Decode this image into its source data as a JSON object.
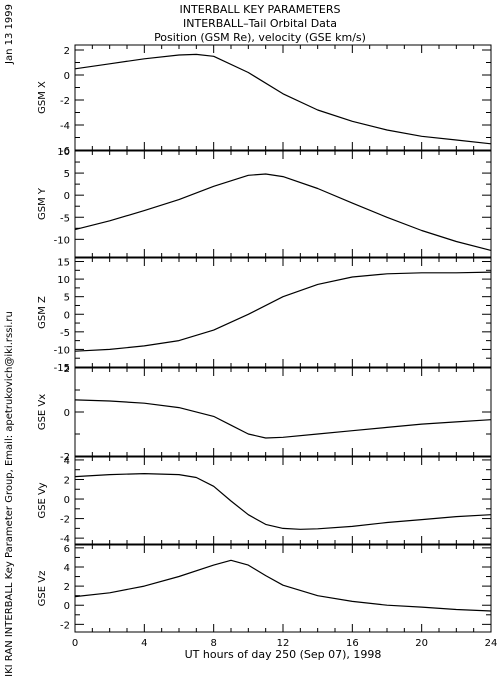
{
  "header": {
    "lines": [
      "INTERBALL KEY PARAMETERS",
      "INTERBALL–Tail Orbital Data",
      "Position (GSM Re), velocity (GSE km/s)"
    ]
  },
  "date_stamp": "Jan 13 1999",
  "credit": "IKI RAN INTERBALL Key Parameter Group, Email: apetrukovich@iki.rssi.ru",
  "chart_data": [
    {
      "type": "line",
      "ylabel": "GSM X",
      "ylim": [
        -6,
        2.4
      ],
      "yticks": [
        -6,
        -4,
        -2,
        0,
        2
      ],
      "x": [
        0,
        2,
        4,
        6,
        7,
        8,
        10,
        12,
        14,
        16,
        18,
        20,
        22,
        24
      ],
      "y": [
        0.5,
        0.9,
        1.3,
        1.6,
        1.65,
        1.5,
        0.2,
        -1.5,
        -2.8,
        -3.7,
        -4.4,
        -4.9,
        -5.2,
        -5.5
      ]
    },
    {
      "type": "line",
      "ylabel": "GSM Y",
      "ylim": [
        -14,
        10
      ],
      "yticks": [
        -10,
        -5,
        0,
        5,
        10
      ],
      "x": [
        0,
        2,
        4,
        6,
        8,
        10,
        11,
        12,
        14,
        16,
        18,
        20,
        22,
        24
      ],
      "y": [
        -7.8,
        -5.8,
        -3.5,
        -1,
        2,
        4.5,
        4.8,
        4.2,
        1.5,
        -1.8,
        -5,
        -8,
        -10.5,
        -12.5
      ]
    },
    {
      "type": "line",
      "ylabel": "GSM Z",
      "ylim": [
        -15,
        16
      ],
      "yticks": [
        -15,
        -10,
        -5,
        0,
        5,
        10,
        15
      ],
      "x": [
        0,
        2,
        4,
        6,
        8,
        10,
        12,
        14,
        16,
        18,
        20,
        22,
        24
      ],
      "y": [
        -10.5,
        -10,
        -9,
        -7.5,
        -4.5,
        0,
        5,
        8.5,
        10.6,
        11.5,
        11.8,
        11.8,
        12
      ]
    },
    {
      "type": "line",
      "ylabel": "GSE Vx",
      "ylim": [
        -2,
        2
      ],
      "yticks": [
        -2,
        0,
        2
      ],
      "x": [
        0,
        2,
        4,
        6,
        8,
        9,
        10,
        11,
        12,
        14,
        16,
        18,
        20,
        22,
        24
      ],
      "y": [
        0.55,
        0.5,
        0.4,
        0.2,
        -0.2,
        -0.6,
        -1,
        -1.18,
        -1.15,
        -1,
        -0.85,
        -0.7,
        -0.55,
        -0.45,
        -0.35
      ]
    },
    {
      "type": "line",
      "ylabel": "GSE Vy",
      "ylim": [
        -4.6,
        4.3
      ],
      "yticks": [
        -4,
        -2,
        0,
        2,
        4
      ],
      "x": [
        0,
        2,
        4,
        6,
        7,
        8,
        9,
        10,
        11,
        12,
        13,
        14,
        16,
        18,
        20,
        22,
        24
      ],
      "y": [
        2.3,
        2.5,
        2.6,
        2.5,
        2.2,
        1.3,
        -0.2,
        -1.6,
        -2.6,
        -3,
        -3.1,
        -3.05,
        -2.8,
        -2.4,
        -2.1,
        -1.8,
        -1.6
      ]
    },
    {
      "type": "line",
      "ylabel": "GSE Vz",
      "ylim": [
        -2.8,
        6.3
      ],
      "yticks": [
        -2,
        0,
        2,
        4,
        6
      ],
      "x": [
        0,
        2,
        4,
        6,
        8,
        9,
        10,
        11,
        12,
        14,
        16,
        18,
        20,
        22,
        24
      ],
      "y": [
        0.9,
        1.3,
        2,
        3,
        4.2,
        4.7,
        4.2,
        3.1,
        2.1,
        1,
        0.4,
        0,
        -0.2,
        -0.45,
        -0.6
      ]
    }
  ],
  "x_axis": {
    "ticks": [
      0,
      4,
      8,
      12,
      16,
      20,
      24
    ],
    "minor_ticks": [
      1,
      2,
      3,
      5,
      6,
      7,
      9,
      10,
      11,
      13,
      14,
      15,
      17,
      18,
      19,
      21,
      22,
      23
    ],
    "xlim": [
      0,
      24
    ],
    "label": "UT hours of day 250 (Sep 07), 1998"
  }
}
